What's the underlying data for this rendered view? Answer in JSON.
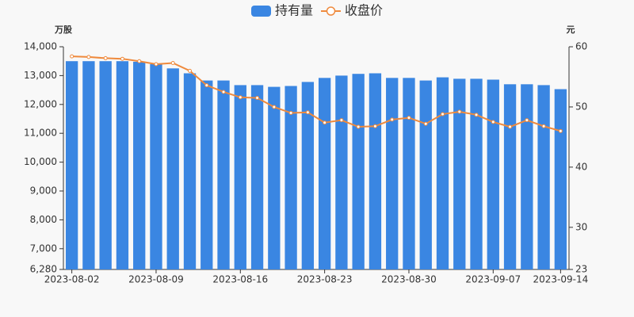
{
  "chart_data": {
    "type": "bar",
    "legend": "top",
    "y_label": "万股",
    "y2_label": "元",
    "categories": [
      "2023-08-02",
      null,
      null,
      null,
      null,
      "2023-08-09",
      null,
      null,
      null,
      null,
      "2023-08-16",
      null,
      null,
      null,
      null,
      "2023-08-23",
      null,
      null,
      null,
      null,
      "2023-08-30",
      null,
      null,
      null,
      null,
      "2023-09-07",
      null,
      null,
      null,
      "2023-09-14"
    ],
    "series": [
      {
        "name": "持有量",
        "type": "bar",
        "color": "#3a86e2",
        "values": [
          13500,
          13500,
          13500,
          13500,
          13480,
          13400,
          13250,
          13080,
          12830,
          12830,
          12670,
          12670,
          12610,
          12640,
          12780,
          12920,
          13000,
          13060,
          13080,
          12920,
          12920,
          12830,
          12940,
          12890,
          12890,
          12860,
          12700,
          12700,
          12670,
          12530
        ]
      },
      {
        "name": "收盘价",
        "type": "line",
        "axis": "y2",
        "color": "#ef8a3d",
        "values": [
          58.4,
          58.3,
          58.1,
          58.0,
          57.6,
          57.1,
          57.3,
          56.0,
          53.6,
          52.5,
          51.6,
          51.5,
          50.0,
          49.0,
          49.1,
          47.4,
          47.8,
          46.7,
          46.8,
          47.9,
          48.2,
          47.2,
          48.8,
          49.2,
          48.7,
          47.5,
          46.7,
          47.8,
          46.8,
          46.0
        ]
      }
    ],
    "ylim": [
      6280,
      14000
    ],
    "yticks": [
      {
        "value": 6280,
        "label": "6,280"
      },
      {
        "value": 7000,
        "label": "7,000"
      },
      {
        "value": 8000,
        "label": "8,000"
      },
      {
        "value": 9000,
        "label": "9,000"
      },
      {
        "value": 10000,
        "label": "10,000"
      },
      {
        "value": 11000,
        "label": "11,000"
      },
      {
        "value": 12000,
        "label": "12,000"
      },
      {
        "value": 13000,
        "label": "13,000"
      },
      {
        "value": 14000,
        "label": "14,000"
      }
    ],
    "y2lim": [
      23,
      60
    ],
    "y2ticks": [
      23,
      30,
      40,
      50,
      60
    ],
    "grid": false
  }
}
